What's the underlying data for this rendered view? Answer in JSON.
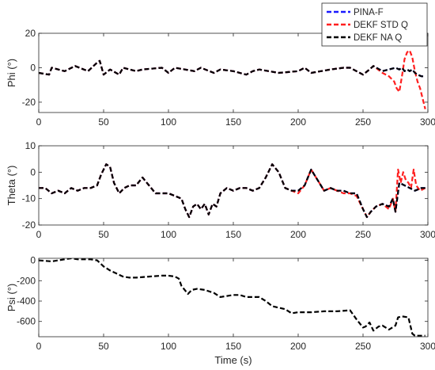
{
  "chart_data": [
    {
      "type": "line",
      "ylabel": "Phi (°)",
      "xlim": [
        0,
        300
      ],
      "ylim": [
        -26,
        20
      ],
      "xticks": [
        "0",
        "50",
        "100",
        "150",
        "200",
        "250",
        "300"
      ],
      "yticks": [
        "20",
        "0",
        "-20"
      ],
      "ytick_values": [
        20,
        0,
        -20
      ],
      "grid": false,
      "legend": {
        "position": "top-right",
        "entries": [
          "PINA-F",
          "DEKF STD Q",
          "DEKF NA Q"
        ]
      },
      "series": [
        {
          "name": "PINA-F",
          "color": "#1a1aff",
          "style": "dashed",
          "x": [
            0,
            8,
            10,
            20,
            28,
            38,
            45,
            47,
            50,
            55,
            62,
            65,
            75,
            80,
            95,
            100,
            105,
            120,
            125,
            135,
            140,
            150,
            160,
            165,
            170,
            185,
            200,
            205,
            210,
            225,
            235,
            240,
            250,
            255,
            258,
            265,
            270,
            275,
            278,
            280,
            282,
            284,
            286,
            288,
            290,
            292,
            295,
            298
          ],
          "y": [
            -3,
            -4,
            0,
            -2,
            1,
            -2,
            3,
            4,
            -4,
            -1,
            -4,
            0,
            -2,
            -1,
            0,
            -3,
            0,
            -2,
            0,
            -3,
            -1,
            -2,
            -4,
            -2,
            -1,
            -3,
            -2,
            0,
            -3,
            -1,
            0,
            0,
            -4,
            -1,
            1,
            -2,
            -1,
            0,
            -1,
            0,
            -2,
            -1,
            -2,
            -1,
            -3,
            -4,
            -5,
            -5
          ]
        },
        {
          "name": "DEKF STD Q",
          "color": "#ff1f1f",
          "style": "dashed",
          "x": [
            0,
            8,
            10,
            20,
            28,
            38,
            45,
            47,
            50,
            55,
            62,
            65,
            75,
            80,
            95,
            100,
            105,
            120,
            125,
            135,
            140,
            150,
            160,
            165,
            170,
            185,
            200,
            205,
            210,
            225,
            235,
            240,
            250,
            255,
            258,
            265,
            270,
            274,
            276,
            278,
            280,
            282,
            284,
            286,
            288,
            290,
            292,
            294,
            296,
            298
          ],
          "y": [
            -3,
            -4,
            0,
            -2,
            1,
            -2,
            3,
            4,
            -4,
            -1,
            -4,
            0,
            -2,
            -1,
            0,
            -3,
            0,
            -2,
            0,
            -3,
            -1,
            -2,
            -4,
            -2,
            -1,
            -3,
            -2,
            0,
            -3,
            -1,
            0,
            0,
            -4,
            -1,
            1,
            -3,
            -5,
            -8,
            -12,
            -14,
            -5,
            5,
            9,
            10,
            6,
            -2,
            -8,
            -12,
            -18,
            -24
          ]
        },
        {
          "name": "DEKF NA Q",
          "color": "#000000",
          "style": "dashed",
          "x": [
            0,
            8,
            10,
            20,
            28,
            38,
            45,
            47,
            50,
            55,
            62,
            65,
            75,
            80,
            95,
            100,
            105,
            120,
            125,
            135,
            140,
            150,
            160,
            165,
            170,
            185,
            200,
            205,
            210,
            225,
            235,
            240,
            250,
            255,
            258,
            265,
            270,
            275,
            278,
            280,
            282,
            284,
            286,
            288,
            290,
            292,
            295,
            298
          ],
          "y": [
            -3,
            -4,
            0,
            -2,
            1,
            -2,
            3,
            4,
            -4,
            -1,
            -4,
            0,
            -2,
            -1,
            0,
            -3,
            0,
            -2,
            0,
            -3,
            -1,
            -2,
            -4,
            -2,
            -1,
            -3,
            -2,
            0,
            -3,
            -1,
            0,
            0,
            -4,
            -1,
            1,
            -2,
            -1,
            0,
            -1,
            0,
            -2,
            -1,
            -2,
            -1,
            -3,
            -4,
            -5,
            -5
          ]
        }
      ]
    },
    {
      "type": "line",
      "ylabel": "Theta (°)",
      "xlim": [
        0,
        300
      ],
      "ylim": [
        -20,
        10
      ],
      "xticks": [
        "0",
        "50",
        "100",
        "150",
        "200",
        "250",
        "300"
      ],
      "yticks": [
        "10",
        "0",
        "-10",
        "-20"
      ],
      "ytick_values": [
        10,
        0,
        -10,
        -20
      ],
      "grid": false,
      "series": [
        {
          "name": "PINA-F",
          "color": "#1a1aff",
          "style": "dashed",
          "x": [
            0,
            5,
            10,
            15,
            20,
            25,
            30,
            35,
            40,
            45,
            48,
            52,
            55,
            58,
            62,
            66,
            70,
            75,
            80,
            85,
            90,
            95,
            100,
            105,
            110,
            113,
            116,
            119,
            122,
            125,
            128,
            131,
            134,
            137,
            140,
            145,
            150,
            155,
            160,
            165,
            170,
            175,
            180,
            185,
            190,
            195,
            200,
            205,
            210,
            215,
            220,
            225,
            230,
            235,
            240,
            245,
            250,
            253,
            256,
            260,
            265,
            270,
            273,
            275,
            278,
            282,
            286,
            290,
            295,
            298
          ],
          "y": [
            -6,
            -6,
            -8,
            -7,
            -8,
            -6,
            -7,
            -6,
            -6,
            -5,
            -1,
            3,
            2,
            -4,
            -8,
            -6,
            -5,
            -5,
            -2,
            -5,
            -8,
            -8,
            -8,
            -9,
            -10,
            -14,
            -17,
            -13,
            -12,
            -14,
            -12,
            -16,
            -12,
            -13,
            -8,
            -6,
            -7,
            -6,
            -6,
            -7,
            -6,
            -2,
            3,
            0,
            -6,
            -7,
            -7,
            -5,
            1,
            -3,
            -7,
            -6,
            -7,
            -7,
            -8,
            -8,
            -14,
            -17,
            -15,
            -13,
            -12,
            -13,
            -10,
            -15,
            -4,
            -5,
            -6,
            -7,
            -6,
            -6
          ]
        },
        {
          "name": "DEKF STD Q",
          "color": "#ff1f1f",
          "style": "dashed",
          "x": [
            0,
            5,
            10,
            15,
            20,
            25,
            30,
            35,
            40,
            45,
            48,
            52,
            55,
            58,
            62,
            66,
            70,
            75,
            80,
            85,
            90,
            95,
            100,
            105,
            110,
            113,
            116,
            119,
            122,
            125,
            128,
            131,
            134,
            137,
            140,
            145,
            150,
            155,
            160,
            165,
            170,
            175,
            180,
            185,
            190,
            195,
            200,
            205,
            210,
            215,
            220,
            225,
            230,
            235,
            240,
            245,
            250,
            253,
            256,
            260,
            265,
            270,
            273,
            275,
            277,
            279,
            281,
            283,
            285,
            287,
            289,
            291,
            294,
            298
          ],
          "y": [
            -6,
            -6,
            -8,
            -7,
            -8,
            -6,
            -7,
            -6,
            -6,
            -5,
            -1,
            3,
            2,
            -4,
            -8,
            -6,
            -5,
            -5,
            -2,
            -5,
            -8,
            -8,
            -8,
            -9,
            -10,
            -14,
            -17,
            -13,
            -12,
            -14,
            -12,
            -16,
            -12,
            -13,
            -8,
            -6,
            -7,
            -6,
            -6,
            -7,
            -6,
            -2,
            3,
            0,
            -6,
            -7,
            -8,
            -5,
            1,
            -3,
            -7,
            -6,
            -7,
            -8,
            -8,
            -9,
            -14,
            -17,
            -15,
            -13,
            -12,
            -14,
            -10,
            -15,
            1,
            -4,
            0,
            -3,
            -4,
            -6,
            1,
            -5,
            -7,
            -6
          ]
        },
        {
          "name": "DEKF NA Q",
          "color": "#000000",
          "style": "dashed",
          "x": [
            0,
            5,
            10,
            15,
            20,
            25,
            30,
            35,
            40,
            45,
            48,
            52,
            55,
            58,
            62,
            66,
            70,
            75,
            80,
            85,
            90,
            95,
            100,
            105,
            110,
            113,
            116,
            119,
            122,
            125,
            128,
            131,
            134,
            137,
            140,
            145,
            150,
            155,
            160,
            165,
            170,
            175,
            180,
            185,
            190,
            195,
            200,
            205,
            210,
            215,
            220,
            225,
            230,
            235,
            240,
            245,
            250,
            253,
            256,
            260,
            265,
            270,
            273,
            275,
            278,
            282,
            286,
            290,
            295,
            298
          ],
          "y": [
            -6,
            -6,
            -8,
            -7,
            -8,
            -6,
            -7,
            -6,
            -6,
            -5,
            -1,
            3,
            2,
            -4,
            -8,
            -6,
            -5,
            -5,
            -2,
            -5,
            -8,
            -8,
            -8,
            -9,
            -10,
            -14,
            -17,
            -13,
            -12,
            -14,
            -12,
            -16,
            -12,
            -13,
            -8,
            -6,
            -7,
            -6,
            -6,
            -7,
            -6,
            -2,
            3,
            0,
            -6,
            -7,
            -7,
            -5,
            1,
            -3,
            -7,
            -6,
            -7,
            -7,
            -8,
            -8,
            -14,
            -17,
            -15,
            -13,
            -12,
            -13,
            -10,
            -15,
            -4,
            -5,
            -6,
            -7,
            -6,
            -6
          ]
        }
      ]
    },
    {
      "type": "line",
      "ylabel": "Psi (°)",
      "xlabel": "Time (s)",
      "xlim": [
        0,
        300
      ],
      "ylim": [
        -750,
        20
      ],
      "xticks": [
        "0",
        "50",
        "100",
        "150",
        "200",
        "250",
        "300"
      ],
      "yticks": [
        "0",
        "-200",
        "-400",
        "-600"
      ],
      "ytick_values": [
        0,
        -200,
        -400,
        -600
      ],
      "grid": false,
      "series": [
        {
          "name": "DEKF NA Q",
          "color": "#000000",
          "style": "dashed",
          "x": [
            0,
            10,
            20,
            25,
            30,
            35,
            40,
            45,
            50,
            55,
            60,
            65,
            70,
            75,
            85,
            95,
            100,
            105,
            108,
            110,
            115,
            118,
            122,
            128,
            135,
            140,
            150,
            155,
            160,
            170,
            175,
            180,
            190,
            195,
            200,
            210,
            220,
            230,
            240,
            245,
            250,
            252,
            255,
            258,
            262,
            265,
            270,
            275,
            277,
            280,
            285,
            288,
            290,
            295,
            298
          ],
          "y": [
            0,
            -10,
            10,
            20,
            10,
            10,
            10,
            0,
            -60,
            -100,
            -130,
            -160,
            -170,
            -170,
            -160,
            -150,
            -150,
            -160,
            -180,
            -250,
            -330,
            -290,
            -280,
            -290,
            -320,
            -360,
            -340,
            -340,
            -360,
            -360,
            -400,
            -450,
            -480,
            -520,
            -510,
            -510,
            -500,
            -500,
            -490,
            -580,
            -660,
            -650,
            -610,
            -690,
            -650,
            -640,
            -680,
            -640,
            -560,
            -550,
            -560,
            -720,
            -740,
            -740,
            -740
          ]
        }
      ]
    }
  ]
}
